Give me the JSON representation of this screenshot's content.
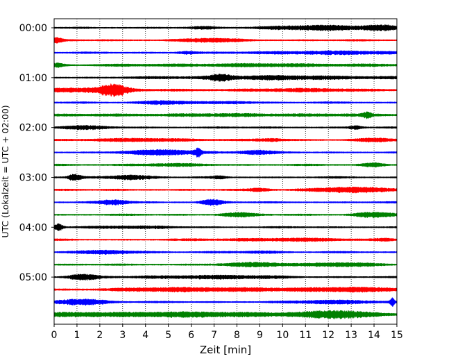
{
  "chart_data": {
    "type": "line",
    "title": "",
    "xlabel": "Zeit  [min]",
    "ylabel": "UTC (Lokalzeit = UTC + 02:00)",
    "xlim": [
      0,
      15
    ],
    "x_ticks": [
      0,
      1,
      2,
      3,
      4,
      5,
      6,
      7,
      8,
      9,
      10,
      11,
      12,
      13,
      14,
      15
    ],
    "x_grid": "dotted vertical lines at each minute",
    "y_ticks": [
      {
        "label": "00:00",
        "trace": 0
      },
      {
        "label": "01:00",
        "trace": 4
      },
      {
        "label": "02:00",
        "trace": 8
      },
      {
        "label": "03:00",
        "trace": 12
      },
      {
        "label": "04:00",
        "trace": 16
      },
      {
        "label": "05:00",
        "trace": 20
      }
    ],
    "trace_minutes": 15,
    "traces_per_hour": 4,
    "trace_colors": [
      "#000000",
      "#ff0000",
      "#0000ff",
      "#008000"
    ],
    "traces": [
      {
        "start": "00:00",
        "bursts": [
          [
            6.5,
            0.5,
            1.2
          ],
          [
            11.5,
            2.5,
            2.8
          ],
          [
            14.3,
            0.8,
            3.2
          ]
        ]
      },
      {
        "start": "00:15",
        "bursts": [
          [
            0.1,
            0.3,
            3.0
          ],
          [
            6.8,
            1.4,
            2.2
          ]
        ]
      },
      {
        "start": "00:30",
        "bursts": [
          [
            5.8,
            0.5,
            1.8
          ],
          [
            12.0,
            3.0,
            2.0
          ]
        ]
      },
      {
        "start": "00:45",
        "bursts": [
          [
            0.15,
            0.3,
            2.5
          ],
          [
            9.0,
            6.0,
            1.6
          ]
        ]
      },
      {
        "start": "01:00",
        "bursts": [
          [
            7.3,
            0.5,
            3.0
          ],
          [
            10.0,
            5.0,
            2.2
          ]
        ]
      },
      {
        "start": "01:15",
        "bursts": [
          [
            1.5,
            2.0,
            2.8
          ],
          [
            2.6,
            0.6,
            6.5
          ],
          [
            11.0,
            4.0,
            1.6
          ]
        ]
      },
      {
        "start": "01:30",
        "bursts": [
          [
            4.8,
            1.3,
            2.2
          ],
          [
            8.0,
            1.0,
            1.4
          ]
        ]
      },
      {
        "start": "01:45",
        "bursts": [
          [
            13.7,
            0.2,
            3.2
          ],
          [
            8.0,
            7.0,
            1.4
          ]
        ]
      },
      {
        "start": "02:00",
        "bursts": [
          [
            1.2,
            1.2,
            2.0
          ],
          [
            13.2,
            0.3,
            2.0
          ]
        ]
      },
      {
        "start": "02:15",
        "bursts": [
          [
            4.0,
            3.0,
            1.6
          ],
          [
            9.5,
            0.6,
            1.6
          ],
          [
            14.0,
            1.0,
            2.0
          ]
        ]
      },
      {
        "start": "02:30",
        "bursts": [
          [
            4.8,
            1.8,
            3.2
          ],
          [
            6.3,
            0.15,
            4.5
          ],
          [
            8.8,
            0.8,
            2.8
          ]
        ]
      },
      {
        "start": "02:45",
        "bursts": [
          [
            14.0,
            0.5,
            2.6
          ],
          [
            5.0,
            2.0,
            1.2
          ]
        ]
      },
      {
        "start": "03:00",
        "bursts": [
          [
            0.9,
            0.3,
            4.0
          ],
          [
            3.3,
            1.0,
            3.0
          ],
          [
            7.2,
            0.3,
            1.6
          ]
        ]
      },
      {
        "start": "03:15",
        "bursts": [
          [
            13.0,
            2.0,
            3.2
          ],
          [
            9.0,
            0.5,
            2.0
          ]
        ]
      },
      {
        "start": "03:30",
        "bursts": [
          [
            2.6,
            0.7,
            3.0
          ],
          [
            6.9,
            0.5,
            3.6
          ]
        ]
      },
      {
        "start": "03:45",
        "bursts": [
          [
            8.0,
            0.8,
            2.6
          ],
          [
            14.0,
            1.0,
            3.2
          ]
        ]
      },
      {
        "start": "04:00",
        "bursts": [
          [
            0.2,
            0.2,
            4.5
          ],
          [
            3.0,
            2.0,
            1.4
          ]
        ]
      },
      {
        "start": "04:15",
        "bursts": [
          [
            10.0,
            3.0,
            1.6
          ],
          [
            14.5,
            0.5,
            1.8
          ]
        ]
      },
      {
        "start": "04:30",
        "bursts": [
          [
            2.5,
            1.5,
            2.2
          ],
          [
            9.0,
            1.0,
            1.4
          ]
        ]
      },
      {
        "start": "04:45",
        "bursts": [
          [
            9.0,
            1.5,
            2.6
          ],
          [
            12.5,
            1.5,
            2.4
          ]
        ]
      },
      {
        "start": "05:00",
        "bursts": [
          [
            1.2,
            0.7,
            3.6
          ],
          [
            7.0,
            3.0,
            2.2
          ]
        ]
      },
      {
        "start": "05:15",
        "bursts": [
          [
            6.5,
            4.0,
            2.6
          ],
          [
            13.0,
            2.0,
            3.0
          ]
        ]
      },
      {
        "start": "05:30",
        "bursts": [
          [
            1.2,
            1.3,
            3.8
          ],
          [
            12.5,
            2.0,
            2.2
          ],
          [
            14.8,
            0.1,
            5.0
          ]
        ]
      },
      {
        "start": "05:45",
        "bursts": [
          [
            5.0,
            9.0,
            3.0
          ],
          [
            12.5,
            1.5,
            3.6
          ]
        ]
      }
    ]
  }
}
